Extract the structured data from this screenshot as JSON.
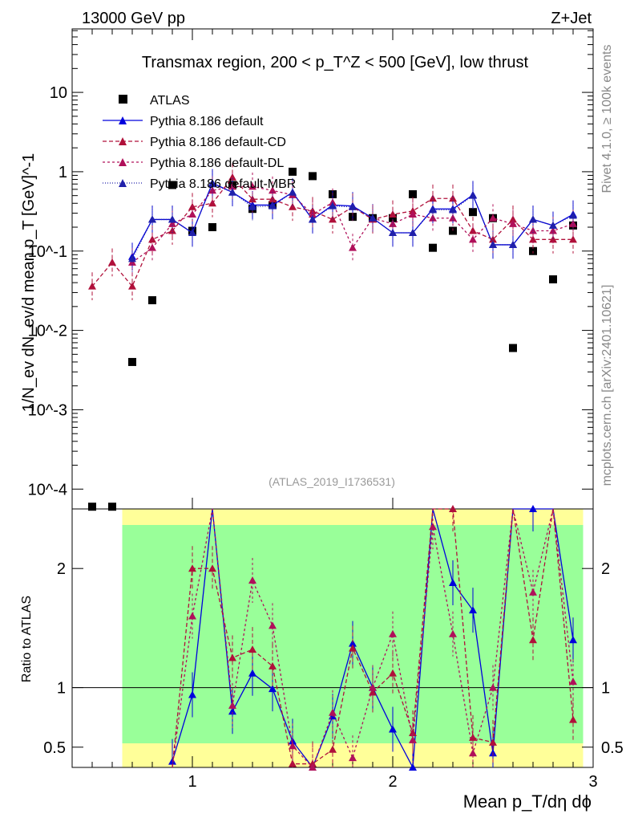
{
  "chart_data": {
    "type": "scatter",
    "header_left": "13000 GeV pp",
    "header_right": "Z+Jet",
    "title": "Transmax region, 200 < p_T^Z < 500 [GeV], low thrust",
    "ylabel": "1/N_ev dN_ev/d mean p_T [GeV]^-1",
    "xlabel": "Mean p_T/dη dϕ",
    "ratio_ylabel": "Ratio to ATLAS",
    "watermark": "(ATLAS_2019_I1736531)",
    "side_label_top": "Rivet 4.1.0, ≥ 100k events",
    "side_label_bottom": "mcplots.cern.ch [arXiv:2401.10621]",
    "xlim": [
      0.4,
      3.0
    ],
    "ylim_main_log10": [
      -4.25,
      1.8
    ],
    "ylim_ratio": [
      0.33,
      2.5
    ],
    "x_ticks": [
      1,
      2,
      3
    ],
    "y_ticks_main": [
      "10^-4",
      "10^-3",
      "10^-2",
      "10^-1",
      "1",
      "10"
    ],
    "y_ticks_ratio": [
      "0.5",
      "1",
      "2"
    ],
    "x": [
      0.5,
      0.6,
      0.7,
      0.8,
      0.9,
      1.0,
      1.1,
      1.2,
      1.3,
      1.4,
      1.5,
      1.6,
      1.7,
      1.8,
      1.9,
      2.0,
      2.1,
      2.2,
      2.3,
      2.4,
      2.5,
      2.6,
      2.7,
      2.8,
      2.9
    ],
    "series": [
      {
        "name": "ATLAS",
        "color": "#000000",
        "marker": "square",
        "values": [
          6e-05,
          6e-05,
          0.004,
          0.024,
          0.68,
          0.18,
          0.2,
          0.68,
          0.34,
          0.38,
          1.0,
          0.88,
          0.52,
          0.27,
          0.26,
          0.26,
          0.52,
          0.11,
          0.18,
          0.31,
          0.26,
          0.006,
          0.1,
          0.044,
          0.21
        ]
      },
      {
        "name": "Pythia 8.186 default",
        "color": "#0000dd",
        "dash": "",
        "values": [
          null,
          null,
          0.085,
          0.25,
          0.25,
          0.17,
          0.72,
          0.55,
          0.38,
          0.38,
          0.55,
          0.25,
          0.38,
          0.37,
          0.26,
          0.17,
          0.17,
          0.34,
          0.34,
          0.51,
          0.12,
          0.12,
          0.25,
          0.21,
          0.29
        ]
      },
      {
        "name": "Pythia 8.186 default-CD",
        "color": "#b0103a",
        "dash": "5,3",
        "values": [
          0.036,
          0.072,
          0.036,
          0.14,
          0.18,
          0.36,
          0.4,
          0.85,
          0.45,
          0.45,
          0.36,
          0.32,
          0.25,
          0.36,
          0.25,
          0.29,
          0.32,
          0.46,
          0.46,
          0.18,
          0.14,
          0.25,
          0.14,
          0.14,
          0.14
        ]
      },
      {
        "name": "Pythia 8.186 default-DL",
        "color": "#b0105a",
        "dash": "3,3",
        "values": [
          null,
          null,
          0.072,
          0.11,
          0.22,
          0.29,
          0.58,
          0.65,
          0.65,
          0.58,
          0.51,
          0.29,
          0.41,
          0.11,
          0.26,
          0.22,
          0.29,
          0.26,
          0.26,
          0.14,
          0.26,
          0.22,
          0.18,
          0.18,
          0.22
        ]
      },
      {
        "name": "Pythia 8.186 default-MBR",
        "color": "#2020aa",
        "dash": "1,2",
        "values": [
          null,
          null,
          0.08,
          0.25,
          0.25,
          0.17,
          0.7,
          0.55,
          0.36,
          0.37,
          0.55,
          0.25,
          0.37,
          0.36,
          0.26,
          0.17,
          0.17,
          0.33,
          0.33,
          0.5,
          0.12,
          0.12,
          0.25,
          0.21,
          0.28
        ]
      }
    ],
    "ratio_series": [
      {
        "name": "Pythia 8.186 default",
        "values": [
          null,
          null,
          null,
          null,
          0.38,
          0.94,
          3.6,
          0.8,
          1.12,
          0.99,
          0.55,
          0.3,
          0.76,
          1.37,
          1.0,
          0.65,
          0.33,
          3.1,
          1.88,
          1.65,
          0.45,
          20.0,
          2.5,
          4.8,
          1.4
        ]
      },
      {
        "name": "Pythia 8.186 default-CD",
        "values": [
          null,
          null,
          null,
          null,
          0.26,
          2.0,
          2.0,
          1.25,
          1.32,
          1.18,
          0.36,
          0.36,
          0.48,
          1.33,
          0.96,
          1.12,
          0.62,
          4.2,
          2.5,
          0.58,
          0.54,
          41.0,
          1.4,
          3.2,
          0.73
        ]
      },
      {
        "name": "Pythia 8.186 default-DL",
        "values": [
          null,
          null,
          null,
          null,
          0.32,
          1.6,
          2.9,
          0.85,
          1.9,
          1.52,
          0.51,
          0.33,
          0.79,
          0.41,
          1.0,
          1.45,
          0.56,
          2.35,
          1.45,
          0.45,
          1.0,
          36.0,
          1.8,
          4.1,
          1.05
        ]
      }
    ],
    "legend_position": "top-left"
  }
}
